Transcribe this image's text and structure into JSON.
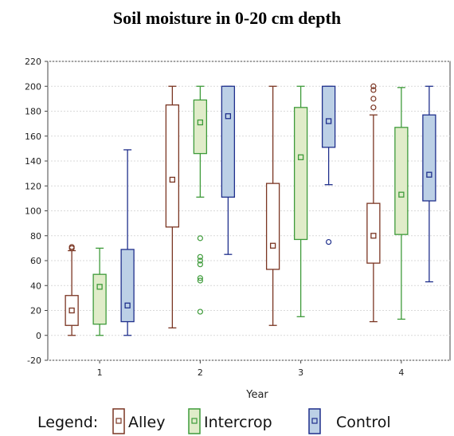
{
  "chart_data": {
    "type": "box",
    "title": "Soil moisture in 0-20 cm depth",
    "xlabel": "Year",
    "ylabel": "",
    "ylim": [
      -20,
      220
    ],
    "yticks": [
      -20,
      0,
      20,
      40,
      60,
      80,
      100,
      120,
      140,
      160,
      180,
      200,
      220
    ],
    "categories": [
      "1",
      "2",
      "3",
      "4"
    ],
    "grid": true,
    "legend_title": "Legend:",
    "legend_position": "bottom",
    "series": [
      {
        "name": "Alley",
        "stroke": "#7a3522",
        "fill": "#ffffff",
        "boxes": [
          {
            "min": 0,
            "q1": 8,
            "median": 20,
            "q3": 32,
            "max": 68,
            "outliers": [
              70,
              71
            ]
          },
          {
            "min": 6,
            "q1": 87,
            "median": 125,
            "q3": 185,
            "max": 200,
            "outliers": []
          },
          {
            "min": 8,
            "q1": 53,
            "median": 72,
            "q3": 122,
            "max": 200,
            "outliers": []
          },
          {
            "min": 11,
            "q1": 58,
            "median": 80,
            "q3": 106,
            "max": 177,
            "outliers": [
              183,
              190,
              197,
              200
            ]
          }
        ]
      },
      {
        "name": "Intercrop",
        "stroke": "#3e9b3a",
        "fill": "#e0ecc9",
        "boxes": [
          {
            "min": 0,
            "q1": 9,
            "median": 39,
            "q3": 49,
            "max": 70,
            "outliers": []
          },
          {
            "min": 111,
            "q1": 146,
            "median": 171,
            "q3": 189,
            "max": 200,
            "outliers": [
              78,
              63,
              60,
              57,
              46,
              44,
              19
            ]
          },
          {
            "min": 15,
            "q1": 77,
            "median": 143,
            "q3": 183,
            "max": 200,
            "outliers": []
          },
          {
            "min": 13,
            "q1": 81,
            "median": 113,
            "q3": 167,
            "max": 199,
            "outliers": []
          }
        ]
      },
      {
        "name": "Control",
        "stroke": "#1f2f8c",
        "fill": "#bcd0e6",
        "boxes": [
          {
            "min": 0,
            "q1": 11,
            "median": 24,
            "q3": 69,
            "max": 149,
            "outliers": []
          },
          {
            "min": 65,
            "q1": 111,
            "median": 176,
            "q3": 200,
            "max": 200,
            "outliers": []
          },
          {
            "min": 121,
            "q1": 151,
            "median": 172,
            "q3": 200,
            "max": 200,
            "outliers": [
              75
            ]
          },
          {
            "min": 43,
            "q1": 108,
            "median": 129,
            "q3": 177,
            "max": 200,
            "outliers": []
          }
        ]
      }
    ]
  }
}
